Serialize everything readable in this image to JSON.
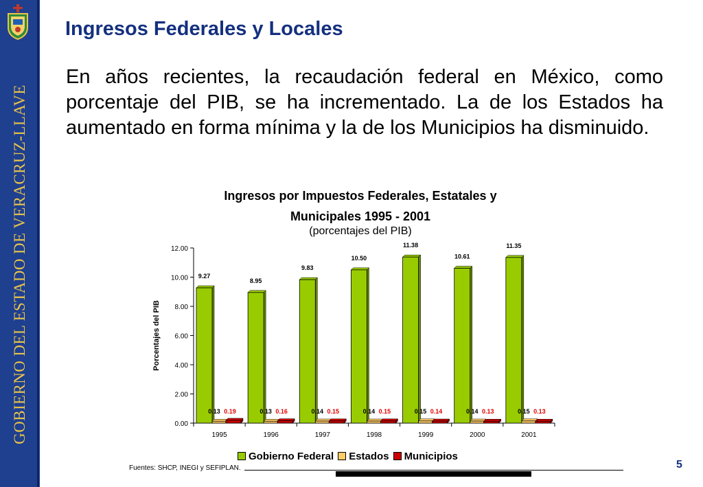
{
  "sidebar": {
    "text": "GOBIERNO DEL ESTADO DE VERACRUZ-LLAVE",
    "logo_icon": "state-coat-of-arms-icon"
  },
  "slide": {
    "title": "Ingresos Federales y Locales",
    "intro": "En años recientes, la recaudación federal en México, como porcentaje del PIB, se ha incrementado. La de los Estados ha aumentado en forma mínima y la de los Municipios ha disminuido.",
    "sources": "Fuentes: SHCP, INEGI y SEFIPLAN.",
    "page_number": "5"
  },
  "colors": {
    "sidebar": "#1f3f8f",
    "title": "#14307f",
    "gobierno": "#99cc00",
    "estados": "#ffcc66",
    "municipios": "#cc0000",
    "municipios_label": "#e00000"
  },
  "chart_data": {
    "type": "bar",
    "title_line1": "Ingresos por Impuestos Federales, Estatales y",
    "title_line2": "Municipales 1995 - 2001",
    "subtitle": "(porcentajes del PIB)",
    "xlabel": "",
    "ylabel": "Porcentajes del PIB",
    "ylim": [
      0,
      12
    ],
    "yticks": [
      "0.00",
      "2.00",
      "4.00",
      "6.00",
      "8.00",
      "10.00",
      "12.00"
    ],
    "categories": [
      "1995",
      "1996",
      "1997",
      "1998",
      "1999",
      "2000",
      "2001"
    ],
    "series": [
      {
        "name": "Gobierno Federal",
        "color": "#99cc00",
        "values": [
          9.27,
          8.95,
          9.83,
          10.5,
          11.38,
          10.61,
          11.35
        ]
      },
      {
        "name": "Estados",
        "color": "#ffcc66",
        "values": [
          0.13,
          0.13,
          0.14,
          0.14,
          0.15,
          0.14,
          0.15
        ]
      },
      {
        "name": "Municipios",
        "color": "#cc0000",
        "values": [
          0.19,
          0.16,
          0.15,
          0.15,
          0.14,
          0.13,
          0.13
        ]
      }
    ],
    "legend_position": "bottom",
    "grid": false
  }
}
